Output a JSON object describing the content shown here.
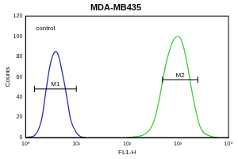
{
  "chart_data": {
    "type": "line",
    "title": "MDA-MB435",
    "x_label": "FL1-H",
    "y_label": "Counts",
    "log": "x",
    "grid": false,
    "xlim": [
      1,
      10000
    ],
    "xticks": [
      {
        "value": 1,
        "label": "10⁰"
      },
      {
        "value": 10,
        "label": "10¹"
      },
      {
        "value": 100,
        "label": "10²"
      },
      {
        "value": 1000,
        "label": "10³"
      },
      {
        "value": 10000,
        "label": "10⁴"
      }
    ],
    "ylim": [
      0,
      120
    ],
    "yticks": [
      0,
      20,
      40,
      60,
      80,
      100,
      120
    ],
    "series": [
      {
        "color": "#2a2ab4",
        "x": [
          1,
          1.5,
          2,
          2.5,
          3,
          3.5,
          4,
          4.5,
          5,
          6,
          7,
          8,
          10,
          12,
          15
        ],
        "values": [
          0,
          2,
          15,
          45,
          70,
          82,
          85,
          80,
          70,
          50,
          30,
          15,
          5,
          1,
          0
        ]
      },
      {
        "color": "#3ccc3c",
        "x": [
          100,
          200,
          300,
          400,
          500,
          600,
          800,
          1000,
          1200,
          1500,
          2000,
          2500,
          3000,
          4000,
          6000
        ],
        "values": [
          0,
          2,
          10,
          30,
          55,
          75,
          95,
          100,
          95,
          75,
          40,
          18,
          7,
          2,
          0
        ]
      }
    ],
    "annotations": [
      {
        "text": "control",
        "x": 1.6,
        "y": 108
      },
      {
        "text": "M1",
        "x_range": [
          1.5,
          10
        ],
        "y": 48
      },
      {
        "text": "M2",
        "x_range": [
          500,
          2500
        ],
        "y": 57
      }
    ]
  }
}
